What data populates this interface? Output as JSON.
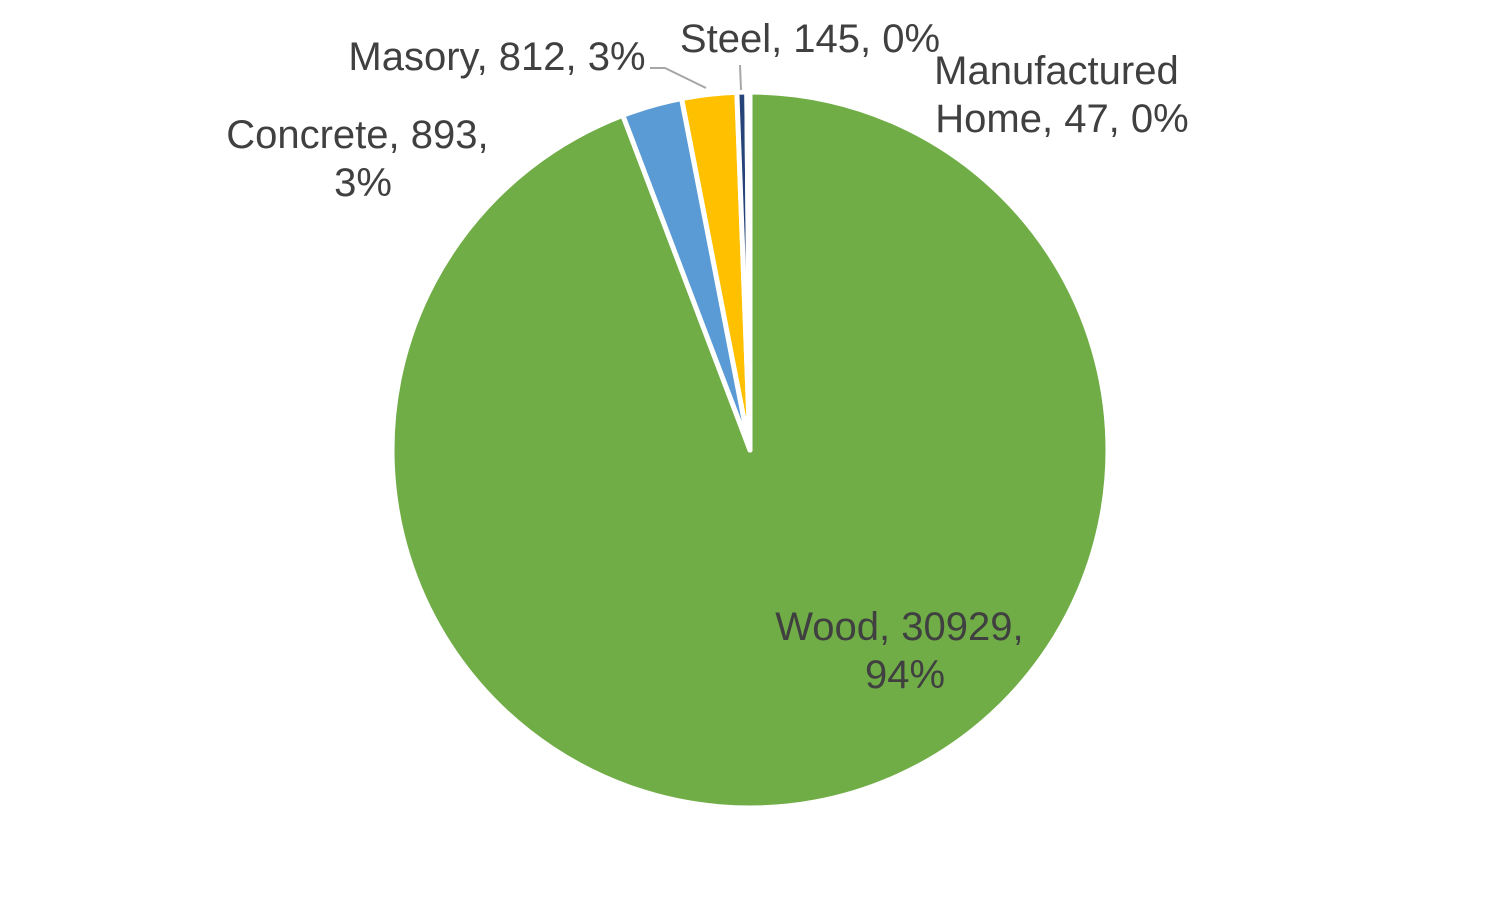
{
  "chart_data": {
    "type": "pie",
    "title": "",
    "legend": "none",
    "slices": [
      {
        "name": "Wood",
        "value": 30929,
        "percent": "94%",
        "color": "#70ad47",
        "label_lines": [
          "Wood, 30929,",
          "94%"
        ]
      },
      {
        "name": "Concrete",
        "value": 893,
        "percent": "3%",
        "color": "#5b9bd5",
        "label_lines": [
          "Concrete, 893,",
          "3%"
        ]
      },
      {
        "name": "Masory",
        "value": 812,
        "percent": "3%",
        "color": "#ffc000",
        "label_lines": [
          "Masory, 812, 3%"
        ]
      },
      {
        "name": "Steel",
        "value": 145,
        "percent": "0%",
        "color": "#264478",
        "label_lines": [
          "Steel, 145, 0%"
        ]
      },
      {
        "name": "Manufactured Home",
        "value": 47,
        "percent": "0%",
        "color": "#43682b",
        "label_lines": [
          "Manufactured",
          "Home, 47, 0%"
        ]
      }
    ]
  }
}
